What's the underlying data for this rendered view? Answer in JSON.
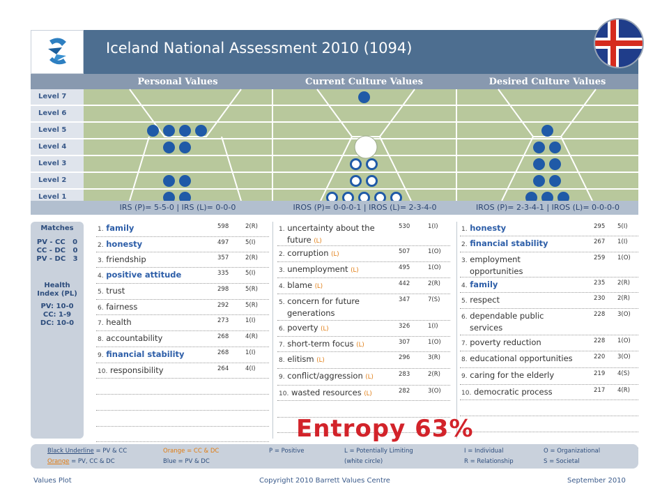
{
  "header": {
    "title": "Iceland National Assessment 2010 (1094)"
  },
  "columns": [
    "Personal Values",
    "Current Culture Values",
    "Desired Culture Values"
  ],
  "levels": [
    "Level 7",
    "Level 6",
    "Level 5",
    "Level 4",
    "Level 3",
    "Level 2",
    "Level 1"
  ],
  "irs": {
    "personal": "IRS (P)= 5-5-0 | IRS (L)= 0-0-0",
    "current": "IROS (P)= 0-0-0-1 | IROS (L)= 2-3-4-0",
    "desired": "IROS (P)= 2-3-4-1 | IROS (L)= 0-0-0-0"
  },
  "sidebar": {
    "matches_title": "Matches",
    "matches": "PV - CC   0\nCC - DC   0\nPV - DC   3",
    "health_title": "Health\nIndex (PL)",
    "health": "PV: 10-0\nCC: 1-9\nDC: 10-0"
  },
  "personal_values": [
    {
      "n": "1.",
      "label": "family",
      "votes": "598",
      "code": "2(R)"
    },
    {
      "n": "2.",
      "label": "honesty",
      "votes": "497",
      "code": "5(I)"
    },
    {
      "n": "3.",
      "label": "friendship",
      "votes": "357",
      "code": "2(R)"
    },
    {
      "n": "4.",
      "label": "positive attitude",
      "votes": "335",
      "code": "5(I)"
    },
    {
      "n": "5.",
      "label": "trust",
      "votes": "298",
      "code": "5(R)"
    },
    {
      "n": "6.",
      "label": "fairness",
      "votes": "292",
      "code": "5(R)"
    },
    {
      "n": "7.",
      "label": "health",
      "votes": "273",
      "code": "1(I)"
    },
    {
      "n": "8.",
      "label": "accountability",
      "votes": "268",
      "code": "4(R)"
    },
    {
      "n": "9.",
      "label": "financial stability",
      "votes": "268",
      "code": "1(I)"
    },
    {
      "n": "10.",
      "label": "responsibility",
      "votes": "264",
      "code": "4(I)"
    }
  ],
  "current_values": [
    {
      "n": "1.",
      "label": "uncertainty  about  the",
      "label2": "future",
      "lim": "(L)",
      "votes": "530",
      "code": "1(I)"
    },
    {
      "n": "2.",
      "label": "corruption",
      "lim": "(L)",
      "votes": "507",
      "code": "1(O)"
    },
    {
      "n": "3.",
      "label": "unemployment",
      "lim": "(L)",
      "votes": "495",
      "code": "1(O)"
    },
    {
      "n": "4.",
      "label": "blame",
      "lim": "(L)",
      "votes": "442",
      "code": "2(R)"
    },
    {
      "n": "5.",
      "label": "concern for future",
      "label2": "generations",
      "votes": "347",
      "code": "7(S)"
    },
    {
      "n": "6.",
      "label": "poverty",
      "lim": "(L)",
      "votes": "326",
      "code": "1(I)"
    },
    {
      "n": "7.",
      "label": "short-term focus",
      "lim": "(L)",
      "votes": "307",
      "code": "1(O)"
    },
    {
      "n": "8.",
      "label": "elitism",
      "lim": "(L)",
      "votes": "296",
      "code": "3(R)"
    },
    {
      "n": "9.",
      "label": "conflict/aggression",
      "lim": "(L)",
      "votes": "283",
      "code": "2(R)"
    },
    {
      "n": "10.",
      "label": "wasted resources",
      "lim": "(L)",
      "votes": "282",
      "code": "3(O)"
    }
  ],
  "desired_values": [
    {
      "n": "1.",
      "label": "honesty",
      "votes": "295",
      "code": "5(I)"
    },
    {
      "n": "2.",
      "label": "financial stability",
      "votes": "267",
      "code": "1(I)"
    },
    {
      "n": "3.",
      "label": "employment",
      "label2": "opportunities",
      "votes": "259",
      "code": "1(O)"
    },
    {
      "n": "4.",
      "label": "family",
      "votes": "235",
      "code": "2(R)"
    },
    {
      "n": "5.",
      "label": "respect",
      "votes": "230",
      "code": "2(R)"
    },
    {
      "n": "6.",
      "label": "dependable public",
      "label2": "services",
      "votes": "228",
      "code": "3(O)"
    },
    {
      "n": "7.",
      "label": "poverty reduction",
      "votes": "228",
      "code": "1(O)"
    },
    {
      "n": "8.",
      "label": "educational opportunities",
      "votes": "220",
      "code": "3(O)"
    },
    {
      "n": "9.",
      "label": "caring for the elderly",
      "votes": "219",
      "code": "4(S)"
    },
    {
      "n": "10.",
      "label": "democratic process",
      "votes": "217",
      "code": "4(R)"
    }
  ],
  "entropy": "Entropy 63%",
  "legend": {
    "black_ul": "Black Underline",
    "black_ul_rest": " = PV & CC",
    "orange1": "Orange = CC & DC",
    "p": "P = Positive",
    "l": "L = Potentially Limiting",
    "i": "I = Individual",
    "o": "O = Organizational",
    "orange2": "Orange",
    "orange2_rest": " = PV, CC & DC",
    "blue": "Blue = PV & DC",
    "wc": "(white circle)",
    "r": "R = Relationship",
    "s": "S = Societal"
  },
  "footer": {
    "left": "Values Plot",
    "center": "Copyright 2010 Barrett Values Centre",
    "right": "September 2010"
  },
  "colors": {
    "header": "#4d6e90",
    "dot": "#1f5aa7",
    "band": "#b8c89c",
    "entropy": "#d2232a",
    "orange": "#e07b10"
  },
  "dot_counts": {
    "personal": {
      "level_5": 4,
      "level_4": 2,
      "level_2": 2,
      "level_1": 2
    },
    "current_filled": {
      "level_7": 1
    },
    "current_white": {
      "level_3": 2,
      "level_2": 2,
      "level_1": 5
    },
    "desired": {
      "level_5": 1,
      "level_4": 2,
      "level_3": 2,
      "level_2": 2,
      "level_1": 3
    }
  }
}
